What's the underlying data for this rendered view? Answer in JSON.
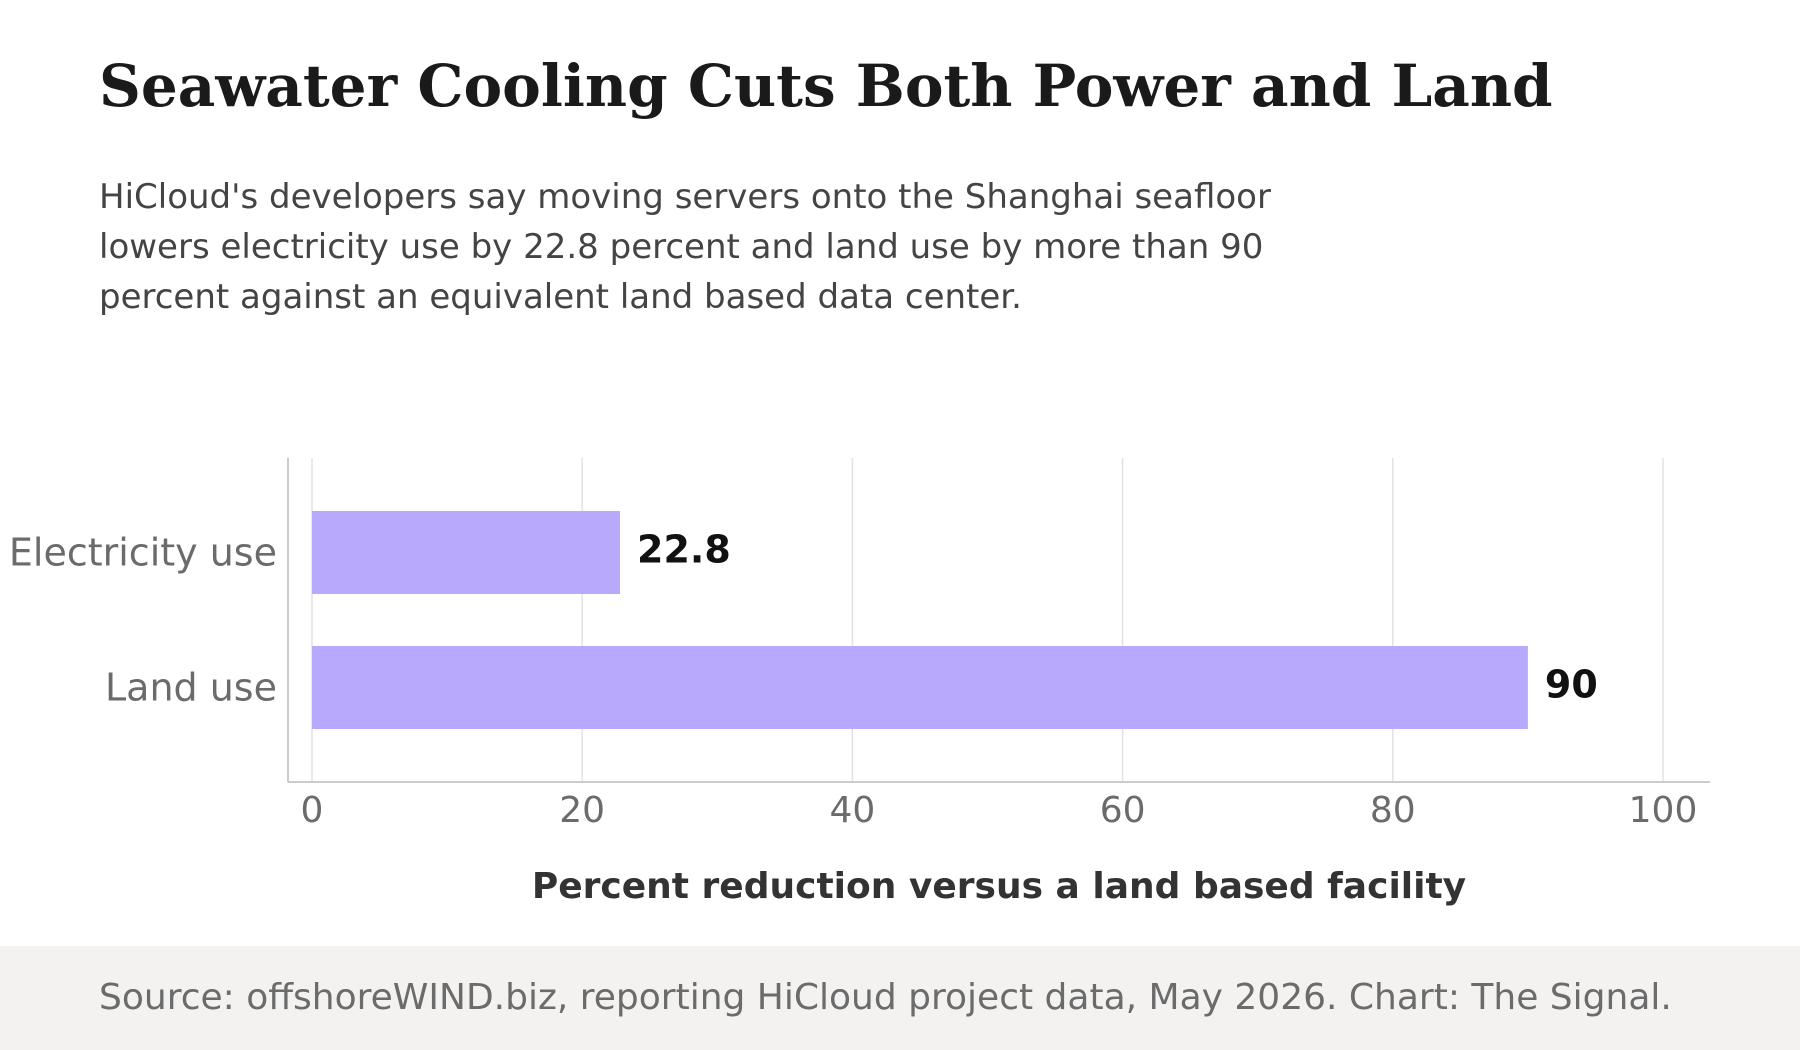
{
  "chart_data": {
    "type": "bar",
    "orientation": "horizontal",
    "title": "Seawater Cooling Cuts Both Power and Land",
    "subtitle": "HiCloud's developers say moving servers onto the Shanghai seafloor lowers electricity use by 22.8 percent and land use by more than 90 percent against an equivalent land based data center.",
    "categories": [
      "Electricity use",
      "Land use"
    ],
    "values": [
      22.8,
      90
    ],
    "value_labels": [
      "22.8",
      "90"
    ],
    "xlabel": "Percent reduction versus a land based facility",
    "ylabel": "",
    "xlim": [
      0,
      100
    ],
    "xticks": [
      0,
      20,
      40,
      60,
      80,
      100
    ],
    "grid": "vertical",
    "bar_color": "#b8a9fc",
    "source": "Source: offshoreWIND.biz, reporting HiCloud project data, May 2026. Chart: The Signal."
  }
}
